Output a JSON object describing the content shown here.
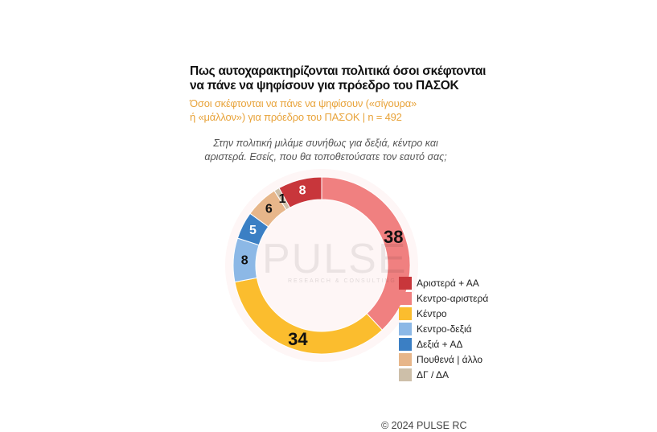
{
  "title_lines": [
    "Πως αυτοχαρακτηρίζονται πολιτικά όσοι σκέφτονται",
    "να πάνε να ψηφίσουν για πρόεδρο του ΠΑΣΟΚ"
  ],
  "subtitle_lines": [
    "Όσοι σκέφτονται να πάνε να ψηφίσουν («σίγουρα»",
    "ή «μάλλον») για πρόεδρο του ΠΑΣΟΚ   |   n = 492"
  ],
  "question_lines": [
    "Στην πολιτική μιλάμε συνήθως για δεξιά, κέντρο και",
    "αριστερά. Εσείς, που θα τοποθετούσατε τον εαυτό σας;"
  ],
  "watermark": {
    "brand": "PULSE",
    "tagline": "RESEARCH & CONSULTING"
  },
  "copyright": "© 2024 PULSE RC",
  "chart_data": {
    "type": "pie",
    "subtype": "donut",
    "start": "top",
    "direction": "clockwise",
    "legend_position": "right",
    "slices": [
      {
        "label": "Κεντρο-αριστερά",
        "value": 38,
        "color": "#f08080",
        "label_color": "#111111"
      },
      {
        "label": "Κέντρο",
        "value": 34,
        "color": "#fbbd2e",
        "label_color": "#111111"
      },
      {
        "label": "Κεντρο-δεξιά",
        "value": 8,
        "color": "#8cb8e6",
        "label_color": "#111111"
      },
      {
        "label": "Δεξιά + ΑΔ",
        "value": 5,
        "color": "#3b7fc4",
        "label_color": "#ffffff"
      },
      {
        "label": "Πουθενά | άλλο",
        "value": 6,
        "color": "#e7b68a",
        "label_color": "#111111"
      },
      {
        "label": "ΔΓ / ΔΑ",
        "value": 1,
        "color": "#cdbfa9",
        "label_color": "#111111"
      },
      {
        "label": "Αριστερά + ΑΑ",
        "value": 8,
        "color": "#c8363b",
        "label_color": "#ffffff"
      }
    ],
    "legend": [
      {
        "label": "Αριστερά + ΑΑ",
        "color": "#c8363b"
      },
      {
        "label": "Κεντρο-αριστερά",
        "color": "#f08080"
      },
      {
        "label": "Κέντρο",
        "color": "#fbbd2e"
      },
      {
        "label": "Κεντρο-δεξιά",
        "color": "#8cb8e6"
      },
      {
        "label": "Δεξιά + ΑΔ",
        "color": "#3b7fc4"
      },
      {
        "label": "Πουθενά | άλλο",
        "color": "#e7b68a"
      },
      {
        "label": "ΔΓ / ΔΑ",
        "color": "#cdbfa9"
      }
    ]
  }
}
